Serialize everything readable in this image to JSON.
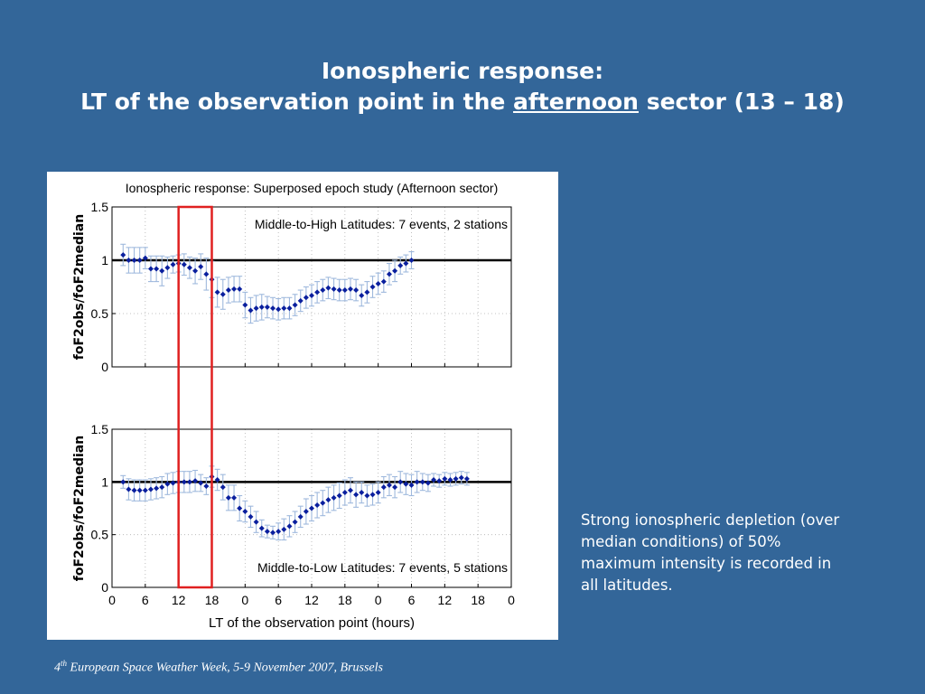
{
  "slide": {
    "title_line1": "Ionospheric response:",
    "title_line2_pre": "LT of the observation point in the ",
    "title_line2_emph": "afternoon",
    "title_line2_post": " sector (13 – 18)",
    "caption": "Strong ionospheric depletion (over median conditions) of 50% maximum intensity is recorded in all latitudes.",
    "footer_num": "4",
    "footer_sup": "th",
    "footer_rest": " European Space Weather Week, 5-9 November 2007, Brussels"
  },
  "colors": {
    "background": "#336699",
    "marker": "#0a1f9e",
    "errorbar": "#9fb9dd",
    "reference_line": "#000000",
    "highlight_box": "#e02020",
    "grid": "#b0b0b0"
  },
  "chart_data": {
    "type": "scatter",
    "title": "Ionospheric response: Superposed epoch study (Afternoon sector)",
    "xlabel": "LT of the observation point (hours)",
    "x_tick_labels": [
      "0",
      "6",
      "12",
      "18",
      "0",
      "6",
      "12",
      "18",
      "0",
      "6",
      "12",
      "18",
      "0"
    ],
    "xlim": [
      0,
      72
    ],
    "highlight_x_range": [
      12,
      18
    ],
    "grid": true,
    "panels": [
      {
        "name": "Middle-to-High Latitudes: 7 events, 2 stations",
        "ylabel": "foF2obs/foF2median",
        "ylim": [
          0,
          1.5
        ],
        "y_ticks": [
          "0",
          "0.5",
          "1",
          "1.5"
        ],
        "reference_y": 1,
        "x": [
          2,
          3,
          4,
          5,
          6,
          7,
          8,
          9,
          10,
          11,
          12,
          13,
          14,
          15,
          16,
          17,
          18,
          19,
          20,
          21,
          22,
          23,
          24,
          25,
          26,
          27,
          28,
          29,
          30,
          31,
          32,
          33,
          34,
          35,
          36,
          37,
          38,
          39,
          40,
          41,
          42,
          43,
          44,
          45,
          46,
          47,
          48,
          49,
          50,
          51,
          52,
          53,
          54
        ],
        "y": [
          1.05,
          1.0,
          1.0,
          1.0,
          1.02,
          0.92,
          0.92,
          0.9,
          0.93,
          0.96,
          0.97,
          0.96,
          0.93,
          0.9,
          0.94,
          0.87,
          0.82,
          0.7,
          0.68,
          0.72,
          0.73,
          0.73,
          0.58,
          0.53,
          0.55,
          0.56,
          0.56,
          0.55,
          0.54,
          0.55,
          0.55,
          0.58,
          0.62,
          0.65,
          0.67,
          0.7,
          0.72,
          0.74,
          0.73,
          0.72,
          0.72,
          0.73,
          0.72,
          0.67,
          0.7,
          0.75,
          0.78,
          0.8,
          0.87,
          0.9,
          0.95,
          0.97,
          1.0
        ],
        "err": [
          0.1,
          0.12,
          0.12,
          0.12,
          0.1,
          0.12,
          0.12,
          0.14,
          0.1,
          0.08,
          0.08,
          0.1,
          0.1,
          0.12,
          0.12,
          0.15,
          0.17,
          0.14,
          0.14,
          0.12,
          0.12,
          0.12,
          0.12,
          0.12,
          0.12,
          0.12,
          0.1,
          0.1,
          0.1,
          0.1,
          0.1,
          0.1,
          0.1,
          0.1,
          0.1,
          0.1,
          0.1,
          0.1,
          0.1,
          0.1,
          0.1,
          0.1,
          0.1,
          0.1,
          0.1,
          0.1,
          0.1,
          0.1,
          0.1,
          0.1,
          0.08,
          0.08,
          0.08
        ]
      },
      {
        "name": "Middle-to-Low Latitudes: 7 events, 5 stations",
        "ylabel": "foF2obs/foF2median",
        "ylim": [
          0,
          1.5
        ],
        "y_ticks": [
          "0",
          "0.5",
          "1",
          "1.5"
        ],
        "reference_y": 1,
        "x": [
          2,
          3,
          4,
          5,
          6,
          7,
          8,
          9,
          10,
          11,
          12,
          13,
          14,
          15,
          16,
          17,
          18,
          19,
          20,
          21,
          22,
          23,
          24,
          25,
          26,
          27,
          28,
          29,
          30,
          31,
          32,
          33,
          34,
          35,
          36,
          37,
          38,
          39,
          40,
          41,
          42,
          43,
          44,
          45,
          46,
          47,
          48,
          49,
          50,
          51,
          52,
          53,
          54,
          55,
          56,
          57,
          58,
          59,
          60,
          61,
          62,
          63,
          64
        ],
        "y": [
          1.0,
          0.93,
          0.92,
          0.92,
          0.92,
          0.93,
          0.94,
          0.95,
          0.98,
          0.99,
          1.0,
          1.0,
          1.0,
          1.01,
          0.99,
          0.96,
          1.05,
          1.02,
          0.95,
          0.85,
          0.85,
          0.75,
          0.72,
          0.67,
          0.62,
          0.56,
          0.53,
          0.52,
          0.53,
          0.55,
          0.58,
          0.62,
          0.67,
          0.72,
          0.75,
          0.78,
          0.8,
          0.83,
          0.85,
          0.87,
          0.9,
          0.92,
          0.88,
          0.9,
          0.87,
          0.88,
          0.9,
          0.95,
          0.97,
          0.95,
          1.0,
          0.98,
          0.97,
          1.0,
          1.0,
          0.99,
          1.02,
          1.01,
          1.03,
          1.02,
          1.03,
          1.04,
          1.03
        ],
        "err": [
          0.06,
          0.1,
          0.1,
          0.1,
          0.1,
          0.1,
          0.1,
          0.1,
          0.1,
          0.1,
          0.1,
          0.1,
          0.1,
          0.1,
          0.08,
          0.08,
          0.1,
          0.1,
          0.12,
          0.12,
          0.12,
          0.12,
          0.1,
          0.1,
          0.1,
          0.08,
          0.06,
          0.06,
          0.08,
          0.1,
          0.1,
          0.1,
          0.1,
          0.12,
          0.12,
          0.12,
          0.12,
          0.12,
          0.12,
          0.12,
          0.12,
          0.12,
          0.12,
          0.1,
          0.1,
          0.1,
          0.1,
          0.1,
          0.1,
          0.1,
          0.1,
          0.1,
          0.1,
          0.1,
          0.08,
          0.08,
          0.06,
          0.06,
          0.06,
          0.06,
          0.06,
          0.06,
          0.06
        ]
      }
    ]
  }
}
